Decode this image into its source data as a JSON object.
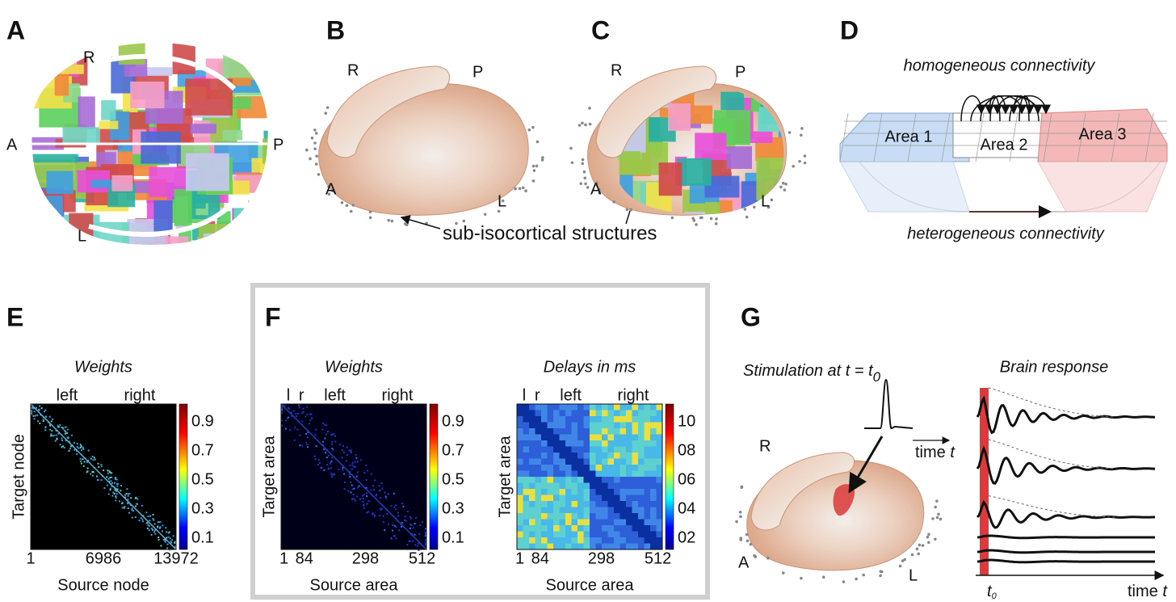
{
  "panels": {
    "a": {
      "label": "A",
      "orientation": {
        "r": "R",
        "a": "A",
        "p": "P",
        "l": "L"
      }
    },
    "b": {
      "label": "B",
      "orientation": {
        "r": "R",
        "a": "A",
        "p": "P",
        "l": "L"
      },
      "annotation": "sub-isocortical structures"
    },
    "c": {
      "label": "C",
      "orientation": {
        "r": "R",
        "a": "A",
        "p": "P",
        "l": "L"
      }
    },
    "d": {
      "label": "D",
      "top_caption": "homogeneous connectivity",
      "areas": [
        "Area 1",
        "Area 2",
        "Area 3"
      ],
      "bottom_caption": "heterogeneous connectivity"
    },
    "e": {
      "label": "E",
      "matrices": [
        {
          "title": "Weights",
          "hemispheres": [
            "left",
            "right"
          ],
          "colorbar_ticks": [
            "0.9",
            "0.7",
            "0.5",
            "0.3",
            "0.1"
          ],
          "y_label": "Target node",
          "x_ticks": [
            "1",
            "6986",
            "13972"
          ],
          "x_label": "Source node"
        }
      ]
    },
    "f": {
      "label": "F",
      "matrices": [
        {
          "title": "Weights",
          "hemispheres": [
            "l",
            "r",
            "left",
            "right"
          ],
          "colorbar_ticks": [
            "0.9",
            "0.7",
            "0.5",
            "0.3",
            "0.1"
          ],
          "y_label": "Target area",
          "x_ticks": [
            "1",
            "84",
            "298",
            "512"
          ],
          "x_label": "Source area"
        },
        {
          "title": "Delays in ms",
          "hemispheres": [
            "l",
            "r",
            "left",
            "right"
          ],
          "colorbar_ticks": [
            "10",
            "08",
            "06",
            "04",
            "02"
          ],
          "y_label": "Target area",
          "x_ticks": [
            "1",
            "84",
            "298",
            "512"
          ],
          "x_label": "Source area"
        }
      ]
    },
    "g": {
      "label": "G",
      "stimulation_title": {
        "text": "Stimulation at t = t",
        "subscript": "0"
      },
      "time_arrow_label": {
        "text": "time ",
        "variable": "t"
      },
      "orientation": {
        "r": "R",
        "a": "A",
        "l": "L"
      },
      "response_title": "Brain response",
      "onset": {
        "text": "t",
        "subscript": "0"
      },
      "time_axis_label": {
        "text": "time ",
        "variable": "t"
      }
    }
  }
}
